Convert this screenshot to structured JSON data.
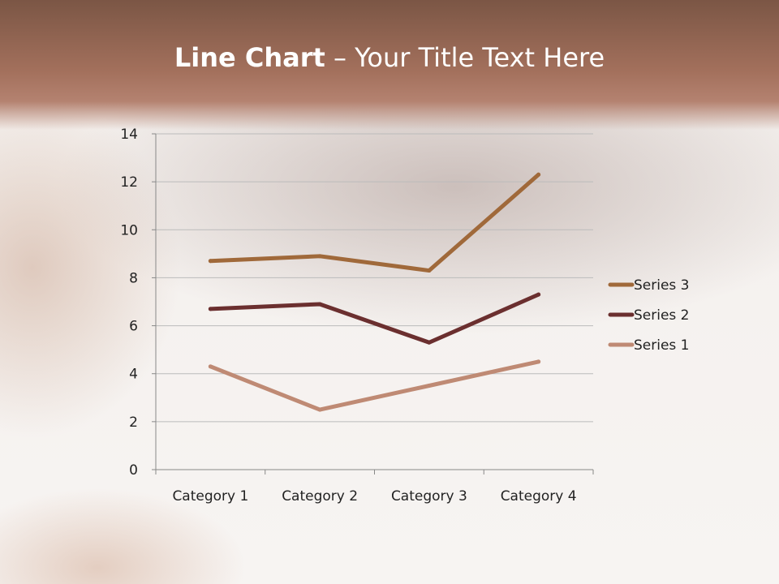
{
  "slide": {
    "title_bold": "Line Chart",
    "title_rest": " – Your Title Text Here"
  },
  "chart_data": {
    "type": "line",
    "categories": [
      "Category 1",
      "Category 2",
      "Category 3",
      "Category 4"
    ],
    "series": [
      {
        "name": "Series 1",
        "values": [
          4.3,
          2.5,
          3.5,
          4.5
        ],
        "color": "#BF8A74"
      },
      {
        "name": "Series 2",
        "values": [
          6.7,
          6.9,
          5.3,
          7.3
        ],
        "color": "#6B2F2F"
      },
      {
        "name": "Series 3",
        "values": [
          8.7,
          8.9,
          8.3,
          12.3
        ],
        "color": "#A0693A"
      }
    ],
    "yticks": [
      "0",
      "2",
      "4",
      "6",
      "8",
      "10",
      "12",
      "14"
    ],
    "ylim": [
      0,
      14
    ],
    "grid": true,
    "legend": "right"
  }
}
